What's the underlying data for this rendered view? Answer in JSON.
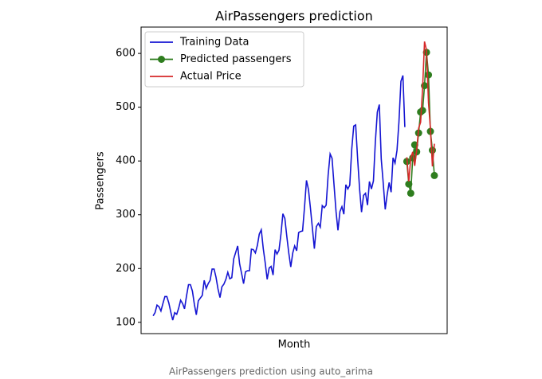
{
  "chart_data": {
    "type": "line",
    "title": "AirPassengers prediction",
    "xlabel": "Month",
    "ylabel": "Passengers",
    "caption": "AirPassengers prediction using auto_arima",
    "xlim": [
      -6.1,
      149.5
    ],
    "ylim": [
      79,
      649
    ],
    "yticks": [
      100,
      200,
      300,
      400,
      500,
      600
    ],
    "legend": "upper left",
    "series": [
      {
        "name": "Training Data",
        "color": "#1414d2",
        "marker": false,
        "values": [
          112,
          118,
          132,
          129,
          121,
          135,
          148,
          148,
          136,
          119,
          104,
          118,
          115,
          126,
          141,
          135,
          125,
          149,
          170,
          170,
          158,
          133,
          114,
          140,
          145,
          150,
          178,
          163,
          172,
          178,
          199,
          199,
          184,
          162,
          146,
          166,
          171,
          180,
          193,
          181,
          183,
          218,
          230,
          242,
          209,
          191,
          172,
          194,
          196,
          196,
          236,
          235,
          229,
          243,
          264,
          272,
          237,
          211,
          180,
          201,
          204,
          188,
          235,
          227,
          234,
          264,
          302,
          293,
          259,
          229,
          203,
          229,
          242,
          233,
          267,
          269,
          270,
          315,
          364,
          347,
          312,
          274,
          237,
          278,
          284,
          277,
          317,
          313,
          318,
          374,
          413,
          405,
          355,
          306,
          271,
          306,
          315,
          301,
          356,
          348,
          355,
          422,
          465,
          467,
          404,
          347,
          305,
          336,
          340,
          318,
          362,
          348,
          363,
          435,
          491,
          505,
          404,
          359,
          310,
          337,
          360,
          342,
          406,
          396,
          420,
          472,
          548,
          559,
          463,
          null,
          null,
          null,
          null,
          null,
          null,
          null,
          null,
          null,
          null,
          null,
          null,
          null,
          null,
          null
        ]
      },
      {
        "name": "Predicted passengers",
        "color": "#2e7d1e",
        "marker": true,
        "values": [
          null,
          null,
          null,
          null,
          null,
          null,
          null,
          null,
          null,
          null,
          null,
          null,
          null,
          null,
          null,
          null,
          null,
          null,
          null,
          null,
          null,
          null,
          null,
          null,
          null,
          null,
          null,
          null,
          null,
          null,
          null,
          null,
          null,
          null,
          null,
          null,
          null,
          null,
          null,
          null,
          null,
          null,
          null,
          null,
          null,
          null,
          null,
          null,
          null,
          null,
          null,
          null,
          null,
          null,
          null,
          null,
          null,
          null,
          null,
          null,
          null,
          null,
          null,
          null,
          null,
          null,
          null,
          null,
          null,
          null,
          null,
          null,
          null,
          null,
          null,
          null,
          null,
          null,
          null,
          null,
          null,
          null,
          null,
          null,
          null,
          null,
          null,
          null,
          null,
          null,
          null,
          null,
          null,
          null,
          null,
          null,
          null,
          null,
          null,
          null,
          null,
          null,
          null,
          null,
          null,
          null,
          null,
          null,
          null,
          null,
          null,
          null,
          null,
          null,
          null,
          null,
          null,
          null,
          null,
          null,
          null,
          null,
          null,
          null,
          null,
          null,
          null,
          null,
          null,
          399,
          357,
          340,
          406,
          430,
          417,
          452,
          491,
          494,
          540,
          602,
          560,
          455,
          420,
          373
        ]
      },
      {
        "name": "Actual Price",
        "color": "#d62728",
        "marker": false,
        "values": [
          null,
          null,
          null,
          null,
          null,
          null,
          null,
          null,
          null,
          null,
          null,
          null,
          null,
          null,
          null,
          null,
          null,
          null,
          null,
          null,
          null,
          null,
          null,
          null,
          null,
          null,
          null,
          null,
          null,
          null,
          null,
          null,
          null,
          null,
          null,
          null,
          null,
          null,
          null,
          null,
          null,
          null,
          null,
          null,
          null,
          null,
          null,
          null,
          null,
          null,
          null,
          null,
          null,
          null,
          null,
          null,
          null,
          null,
          null,
          null,
          null,
          null,
          null,
          null,
          null,
          null,
          null,
          null,
          null,
          null,
          null,
          null,
          null,
          null,
          null,
          null,
          null,
          null,
          null,
          null,
          null,
          null,
          null,
          null,
          null,
          null,
          null,
          null,
          null,
          null,
          null,
          null,
          null,
          null,
          null,
          null,
          null,
          null,
          null,
          null,
          null,
          null,
          null,
          null,
          null,
          null,
          null,
          null,
          null,
          null,
          null,
          null,
          null,
          null,
          null,
          null,
          null,
          null,
          null,
          null,
          null,
          null,
          null,
          null,
          null,
          null,
          null,
          null,
          null,
          407,
          362,
          405,
          417,
          391,
          419,
          461,
          472,
          535,
          622,
          606,
          508,
          461,
          390,
          432
        ]
      }
    ]
  }
}
